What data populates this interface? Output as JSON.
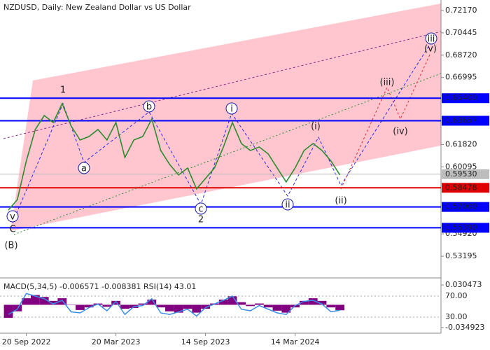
{
  "chart_data": [
    {
      "type": "line",
      "title": "NZDUSD, Daily:  New Zealand Dollar vs US Dollar",
      "categories": [
        null,
        null,
        "20 Sep 2022",
        null,
        null,
        null,
        null,
        null,
        null,
        null,
        null,
        null,
        "20 Mar 2023",
        null,
        null,
        null,
        null,
        null,
        null,
        null,
        null,
        null,
        "14 Sep 2023",
        null,
        null,
        null,
        null,
        null,
        null,
        null,
        null,
        null,
        "14 Mar 2024",
        null,
        null,
        null,
        null,
        null
      ],
      "series": [
        {
          "color": "#2e8b2e",
          "values": [
            0.5676,
            0.5757,
            0.6055,
            0.6298,
            0.6406,
            0.6352,
            0.6498,
            0.6325,
            0.6217,
            0.6244,
            0.6298,
            0.6217,
            0.6352,
            0.6082,
            0.6217,
            0.6244,
            0.6379,
            0.6136,
            0.6028,
            0.5947,
            0.6001,
            0.5839,
            0.592,
            0.6001,
            0.6163,
            0.6352,
            0.619,
            0.6136,
            0.6163,
            0.6109,
            0.6001,
            0.5893,
            0.6001,
            0.6136,
            0.619,
            0.6136,
            0.6055,
            0.5947
          ]
        }
      ],
      "ylim": [
        0.5163,
        0.7298
      ],
      "yticks": [
        {
          "value": 0.7217,
          "label": "0.72170"
        },
        {
          "value": 0.70445,
          "label": "0.70445"
        },
        {
          "value": 0.6872,
          "label": "0.68720"
        },
        {
          "value": 0.66995,
          "label": "0.66995"
        },
        {
          "value": 0.6182,
          "label": "0.61820"
        },
        {
          "value": 0.60095,
          "label": "0.60095"
        },
        {
          "value": 0.5492,
          "label": "0.54920"
        },
        {
          "value": 0.53195,
          "label": "0.53195"
        }
      ],
      "levels": [
        {
          "value": 0.654,
          "label": "0.65400",
          "color": "#0000ff"
        },
        {
          "value": 0.63657,
          "label": "0.63657",
          "color": "#0000ff"
        },
        {
          "value": 0.5953,
          "label": "0.59530",
          "color": "#bdbdbd"
        },
        {
          "value": 0.58478,
          "label": "0.58478",
          "color": "#e00000"
        },
        {
          "value": 0.57,
          "label": "0.57000",
          "color": "#0000ff"
        },
        {
          "value": 0.5539,
          "label": "0.55390",
          "color": "#0000ff"
        }
      ],
      "annotations": [
        {
          "text": "1",
          "color": "#a0302a"
        },
        {
          "text": "a",
          "color": "#1a1aa0"
        },
        {
          "text": "b",
          "color": "#1a1aa0"
        },
        {
          "text": "i",
          "color": "#1a1aa0"
        },
        {
          "text": "c",
          "color": "#1a1aa0"
        },
        {
          "text": "2",
          "color": "#a0302a"
        },
        {
          "text": "ii",
          "color": "#1a1aa0"
        },
        {
          "text": "(i)",
          "color": "#d02020"
        },
        {
          "text": "(ii)",
          "color": "#d02020"
        },
        {
          "text": "(iii)",
          "color": "#d02020"
        },
        {
          "text": "(iv)",
          "color": "#d02020"
        },
        {
          "text": "(v)",
          "color": "#d02020"
        },
        {
          "text": "iii",
          "color": "#1a1aa0"
        },
        {
          "text": "v",
          "color": "#1a1aa0"
        },
        {
          "text": "C",
          "color": "#a0302a"
        },
        {
          "text": "(B)",
          "color": "#2e8b2e"
        }
      ]
    },
    {
      "type": "macd",
      "title": "MACD(5,34,5) -0.006571 -0.008381 RSI(14) 43.01",
      "histogram": {
        "color": "#800080",
        "values": [
          -0.02,
          -0.01,
          0.01,
          0.015,
          0.012,
          0.006,
          0.01,
          0.0,
          -0.008,
          -0.004,
          0.002,
          -0.003,
          0.006,
          -0.006,
          -0.005,
          0.002,
          0.008,
          -0.004,
          -0.01,
          -0.012,
          -0.006,
          -0.012,
          -0.006,
          0.002,
          0.008,
          0.013,
          0.004,
          -0.002,
          0.002,
          -0.004,
          -0.009,
          -0.012,
          -0.004,
          0.006,
          0.01,
          0.006,
          -0.004,
          -0.0084
        ]
      },
      "rsi": {
        "color": "#3c8ce6",
        "axis": "y2",
        "values": [
          35,
          45,
          75,
          70,
          65,
          55,
          62,
          40,
          38,
          48,
          55,
          42,
          60,
          35,
          50,
          52,
          65,
          38,
          35,
          40,
          45,
          32,
          48,
          55,
          62,
          70,
          45,
          42,
          52,
          45,
          38,
          35,
          52,
          60,
          62,
          55,
          40,
          43.01
        ]
      },
      "ylim": [
        -0.0371,
        0.038
      ],
      "yticks": [
        0.030473,
        -0.034923
      ],
      "y2lim": [
        7.3,
        100.7
      ],
      "y2ticks": [
        {
          "value": 70,
          "label": "70.00"
        },
        {
          "value": 30,
          "label": "30.00"
        }
      ]
    }
  ]
}
